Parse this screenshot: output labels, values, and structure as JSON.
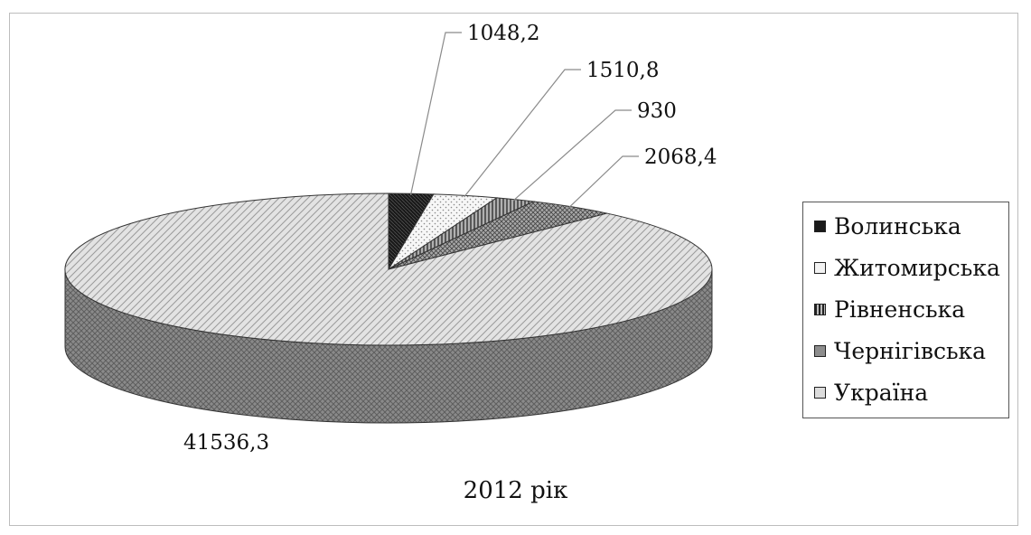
{
  "chart_data": {
    "type": "pie",
    "title": "2012 рік",
    "categories": [
      "Волинська",
      "Житомирська",
      "Рівненська",
      "Чернігівська",
      "Україна"
    ],
    "values": [
      1048.2,
      1510.8,
      930,
      2068.4,
      41536.3
    ],
    "value_labels": [
      "1048,2",
      "1510,8",
      "930",
      "2068,4",
      "41536,3"
    ],
    "legend": {
      "placement": "right",
      "entries": [
        "Волинська",
        "Житомирська",
        "Рівненська",
        "Чернігівська",
        "Україна"
      ]
    },
    "style": "3d-exploded",
    "grid": false
  },
  "colors": {
    "Волинська": "#1a1a1a",
    "Житомирська": "#f3f3f3",
    "Рівненська": "#6e6e6e",
    "Чернігівська": "#9a9a9a",
    "Україна": "#dadada",
    "Україна_side": "#7d7d7d",
    "leader": "#8a8a8a"
  }
}
